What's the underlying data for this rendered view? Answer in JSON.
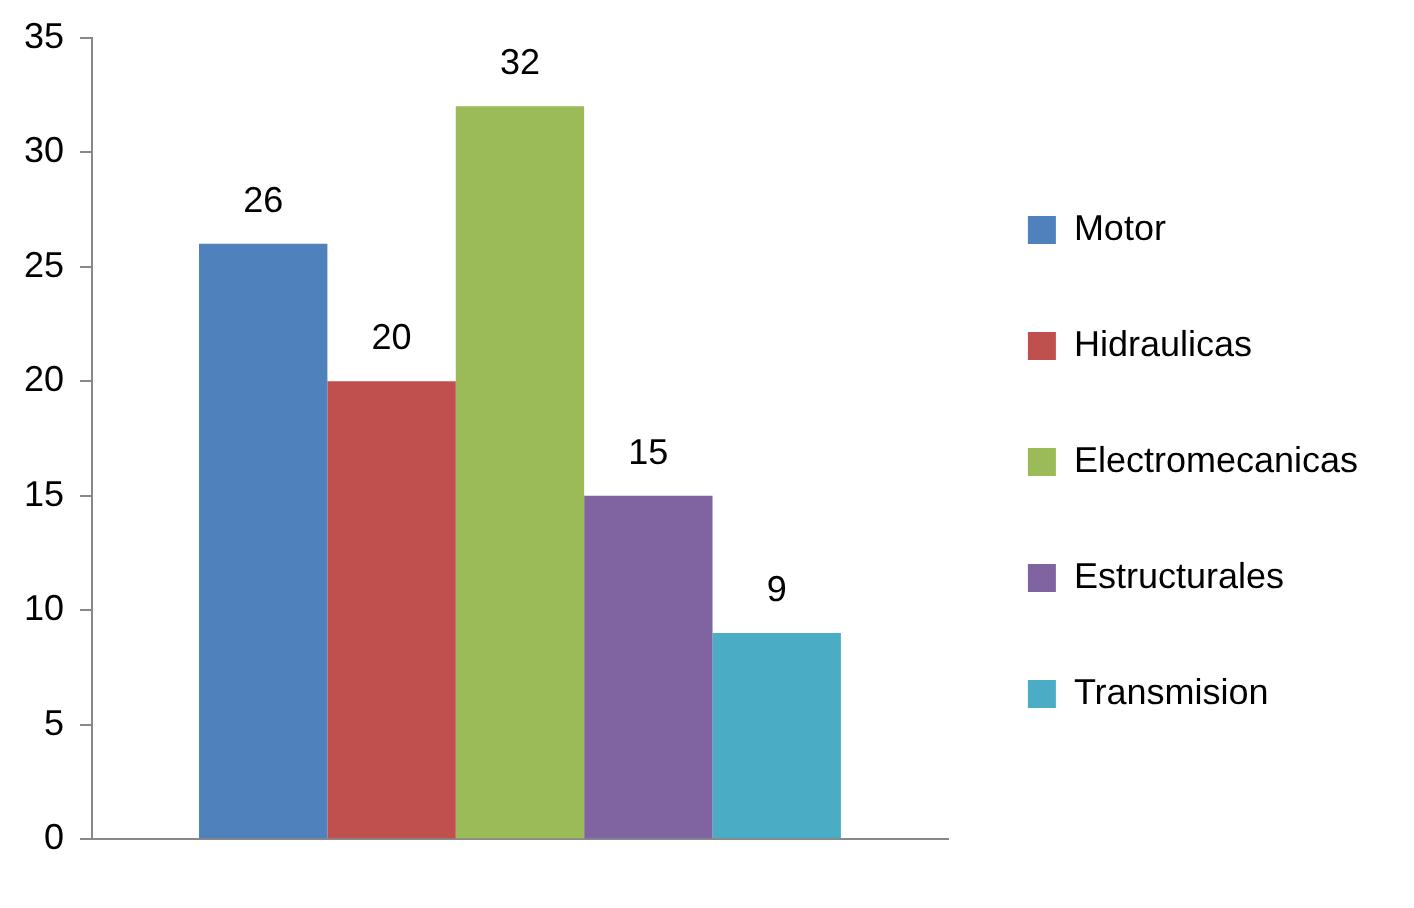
{
  "chart_data": {
    "type": "bar",
    "categories": [
      null
    ],
    "series": [
      {
        "name": "Motor",
        "color": "#4f81bd",
        "values": [
          26
        ]
      },
      {
        "name": "Hidraulicas",
        "color": "#c0504d",
        "values": [
          20
        ]
      },
      {
        "name": "Electromecanicas",
        "color": "#9bbb59",
        "values": [
          32
        ]
      },
      {
        "name": "Estructurales",
        "color": "#8064a2",
        "values": [
          15
        ]
      },
      {
        "name": "Transmision",
        "color": "#4bacc6",
        "values": [
          9
        ]
      }
    ],
    "ylim": [
      0,
      35
    ],
    "yticks": [
      0,
      5,
      10,
      15,
      20,
      25,
      30,
      35
    ],
    "grid": false,
    "legend": "right",
    "data_labels": true
  }
}
